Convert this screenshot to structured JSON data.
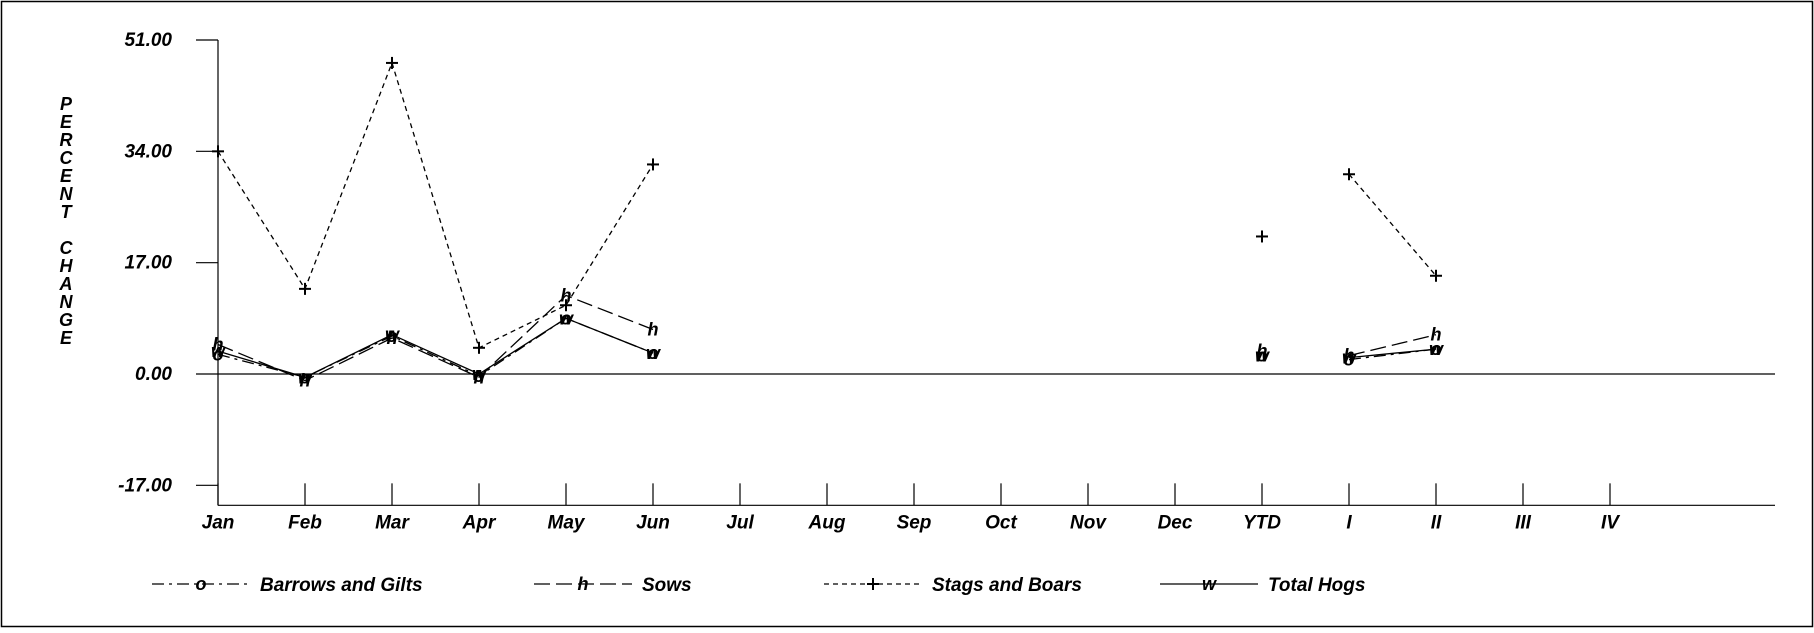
{
  "chart_data": {
    "type": "line",
    "title": "",
    "xlabel": "",
    "ylabel": "PERCENT CHANGE",
    "ylabel_letters": [
      "P",
      "E",
      "R",
      "C",
      "E",
      "N",
      "T",
      "",
      "C",
      "H",
      "A",
      "N",
      "G",
      "E"
    ],
    "ylim": [
      -17,
      51
    ],
    "yticks": [
      "51.00",
      "34.00",
      "17.00",
      "0.00",
      "-17.00"
    ],
    "ytick_values": [
      51,
      34,
      17,
      0,
      -17
    ],
    "categories": [
      "Jan",
      "Feb",
      "Mar",
      "Apr",
      "May",
      "Jun",
      "Jul",
      "Aug",
      "Sep",
      "Oct",
      "Nov",
      "Dec",
      "YTD",
      "I",
      "II",
      "III",
      "IV"
    ],
    "grid": false,
    "legend_position": "bottom",
    "series": [
      {
        "name": "Barrows and Gilts",
        "marker": "o",
        "dash": "dash-dot",
        "values": [
          3.0,
          -0.5,
          5.8,
          -0.3,
          8.5,
          3.2,
          null,
          null,
          null,
          null,
          null,
          null,
          2.8,
          2.2,
          3.8,
          null,
          null
        ]
      },
      {
        "name": "Sows",
        "marker": "h",
        "dash": "long-dash",
        "values": [
          4.5,
          -1.0,
          5.5,
          -0.5,
          12.0,
          6.8,
          null,
          null,
          null,
          null,
          null,
          null,
          3.5,
          2.8,
          6.0,
          null,
          null
        ]
      },
      {
        "name": "Stags and Boars",
        "marker": "+",
        "dash": "short-dash",
        "values": [
          34.0,
          13.0,
          47.5,
          4.0,
          10.5,
          32.0,
          null,
          null,
          null,
          null,
          null,
          null,
          21.0,
          30.5,
          15.0,
          null,
          null
        ]
      },
      {
        "name": "Total Hogs",
        "marker": "w",
        "dash": "solid",
        "values": [
          3.5,
          -0.5,
          6.0,
          0.0,
          8.5,
          3.2,
          null,
          null,
          null,
          null,
          null,
          null,
          2.8,
          2.5,
          3.8,
          null,
          null
        ]
      }
    ],
    "segments": [
      [
        0,
        5
      ],
      [
        13,
        14
      ]
    ]
  }
}
